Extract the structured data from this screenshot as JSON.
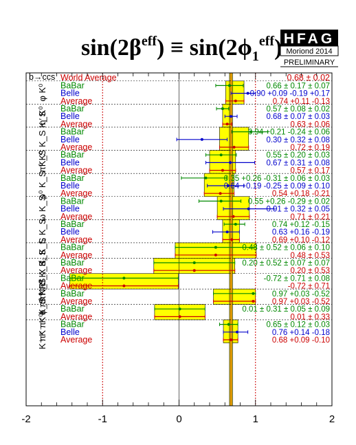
{
  "title": {
    "text": "sin(2βᵉᶠᶠ) ≡ sin(2ϕ₁ᵉᶠᶠ)",
    "part1": "sin(2β",
    "sup1": "eff",
    "part2": ") ≡ sin(2ϕ",
    "sub2": "1",
    "sup2": "eff",
    "part3": ")"
  },
  "logo": {
    "text": "HFAG",
    "subtitle": "Moriond 2014",
    "note": "PRELIMINARY"
  },
  "header_label": "b→ccs",
  "colors": {
    "babar": "#008800",
    "belle": "#0000cc",
    "average": "#cc0000",
    "band": "#ffff00",
    "world": "#cc6600"
  },
  "chart_data": {
    "type": "scatter",
    "title": "sin(2βeff) ≡ sin(2ϕ1eff)",
    "xlim": [
      -2,
      2
    ],
    "xticks": [
      "-2",
      "-1",
      "0",
      "1",
      "2"
    ],
    "reference_lines": [
      -1,
      1
    ],
    "world_average": {
      "label": "World Average",
      "value": 0.68,
      "error": 0.02,
      "text": "0.68 ± 0.02"
    },
    "modes": [
      {
        "mode": "φ K⁰",
        "rows": [
          {
            "exp": "BaBar",
            "value": 0.66,
            "elo": 0.18,
            "ehi": 0.18,
            "text": "0.66 ± 0.17 ± 0.07"
          },
          {
            "exp": "Belle",
            "value": 0.9,
            "elo": 0.22,
            "ehi": 0.1,
            "text": "0.90 +0.09 -0.19 +0.17"
          },
          {
            "exp": "Average",
            "value": 0.74,
            "elo": 0.13,
            "ehi": 0.11,
            "text": "0.74 +0.11 -0.13"
          }
        ]
      },
      {
        "mode": "η′ K⁰",
        "rows": [
          {
            "exp": "BaBar",
            "value": 0.57,
            "elo": 0.08,
            "ehi": 0.08,
            "text": "0.57 ± 0.08 ± 0.02"
          },
          {
            "exp": "Belle",
            "value": 0.68,
            "elo": 0.08,
            "ehi": 0.08,
            "text": "0.68 ± 0.07 ± 0.03"
          },
          {
            "exp": "Average",
            "value": 0.63,
            "elo": 0.06,
            "ehi": 0.06,
            "text": "0.63 ± 0.06"
          }
        ]
      },
      {
        "mode": "K_S K_S K_S",
        "rows": [
          {
            "exp": "BaBar",
            "value": 0.94,
            "elo": 0.25,
            "ehi": 0.22,
            "text": "0.94 +0.21 -0.24 ± 0.06"
          },
          {
            "exp": "Belle",
            "value": 0.3,
            "elo": 0.33,
            "ehi": 0.33,
            "text": "0.30 ± 0.32 ± 0.08"
          },
          {
            "exp": "Average",
            "value": 0.72,
            "elo": 0.19,
            "ehi": 0.19,
            "text": "0.72 ± 0.19"
          }
        ]
      },
      {
        "mode": "π⁰ K⁰",
        "rows": [
          {
            "exp": "BaBar",
            "value": 0.55,
            "elo": 0.2,
            "ehi": 0.2,
            "text": "0.55 ± 0.20 ± 0.03"
          },
          {
            "exp": "Belle",
            "value": 0.67,
            "elo": 0.32,
            "ehi": 0.32,
            "text": "0.67 ± 0.31 ± 0.08"
          },
          {
            "exp": "Average",
            "value": 0.57,
            "elo": 0.17,
            "ehi": 0.17,
            "text": "0.57 ± 0.17"
          }
        ]
      },
      {
        "mode": "ρ⁰ K_S",
        "rows": [
          {
            "exp": "BaBar",
            "value": 0.35,
            "elo": 0.32,
            "ehi": 0.27,
            "text": "0.35 +0.26 -0.31 ± 0.06 ± 0.03"
          },
          {
            "exp": "Belle",
            "value": 0.64,
            "elo": 0.27,
            "ehi": 0.21,
            "text": "0.64 +0.19 -0.25 ± 0.09 ± 0.10"
          },
          {
            "exp": "Average",
            "value": 0.54,
            "elo": 0.21,
            "ehi": 0.18,
            "text": "0.54 +0.18 -0.21"
          }
        ]
      },
      {
        "mode": "ω K_S",
        "rows": [
          {
            "exp": "BaBar",
            "value": 0.55,
            "elo": 0.29,
            "ehi": 0.26,
            "text": "0.55 +0.26 -0.29 ± 0.02"
          },
          {
            "exp": "Belle",
            "value": 0.91,
            "elo": 0.33,
            "ehi": 0.33,
            "text": "0.91 ± 0.32 ± 0.05"
          },
          {
            "exp": "Average",
            "value": 0.71,
            "elo": 0.21,
            "ehi": 0.21,
            "text": "0.71 ± 0.21"
          }
        ]
      },
      {
        "mode": "f₀ K_S",
        "rows": [
          {
            "exp": "BaBar",
            "value": 0.74,
            "elo": 0.15,
            "ehi": 0.12,
            "text": "0.74 +0.12 -0.15"
          },
          {
            "exp": "Belle",
            "value": 0.63,
            "elo": 0.19,
            "ehi": 0.16,
            "text": "0.63 +0.16 -0.19"
          },
          {
            "exp": "Average",
            "value": 0.69,
            "elo": 0.12,
            "ehi": 0.1,
            "text": "0.69 +0.10 -0.12"
          }
        ]
      },
      {
        "mode": "f₂ K_S",
        "rows": [
          {
            "exp": "BaBar",
            "value": 0.48,
            "elo": 0.53,
            "ehi": 0.53,
            "text": "0.48 ± 0.52 ± 0.06 ± 0.10"
          },
          {
            "exp": "Average",
            "value": 0.48,
            "elo": 0.53,
            "ehi": 0.53,
            "text": "0.48 ± 0.53"
          }
        ]
      },
      {
        "mode": "f_X K_S",
        "rows": [
          {
            "exp": "BaBar",
            "value": 0.2,
            "elo": 0.53,
            "ehi": 0.53,
            "text": "0.20 ± 0.52 ± 0.07 ± 0.07"
          },
          {
            "exp": "Average",
            "value": 0.2,
            "elo": 0.53,
            "ehi": 0.53,
            "text": "0.20 ± 0.53"
          }
        ]
      },
      {
        "mode": "π⁰ π⁰ K_S",
        "rows": [
          {
            "exp": "BaBar",
            "value": -0.72,
            "elo": 0.71,
            "ehi": 0.71,
            "text": "-0.72 ± 0.71 ± 0.08"
          },
          {
            "exp": "Average",
            "value": -0.72,
            "elo": 0.71,
            "ehi": 0.71,
            "text": "-0.72 ± 0.71"
          }
        ]
      },
      {
        "mode": "ϕ π⁰ K_S",
        "rows": [
          {
            "exp": "BaBar",
            "value": 0.97,
            "elo": 0.52,
            "ehi": 0.03,
            "text": "0.97 +0.03 -0.52"
          },
          {
            "exp": "Average",
            "value": 0.97,
            "elo": 0.52,
            "ehi": 0.03,
            "text": "0.97 +0.03 -0.52"
          }
        ]
      },
      {
        "mode": "π⁺ π⁻ K_S NR",
        "rows": [
          {
            "exp": "BaBar",
            "value": 0.01,
            "elo": 0.33,
            "ehi": 0.33,
            "text": "0.01 ± 0.31 ± 0.05 ± 0.09"
          },
          {
            "exp": "Average",
            "value": 0.01,
            "elo": 0.33,
            "ehi": 0.33,
            "text": "0.01 ± 0.33"
          }
        ]
      },
      {
        "mode": "K⁺ K⁻ K⁰",
        "rows": [
          {
            "exp": "BaBar",
            "value": 0.65,
            "elo": 0.12,
            "ehi": 0.12,
            "text": "0.65 ± 0.12 ± 0.03"
          },
          {
            "exp": "Belle",
            "value": 0.76,
            "elo": 0.18,
            "ehi": 0.14,
            "text": "0.76 +0.14 -0.18"
          },
          {
            "exp": "Average",
            "value": 0.68,
            "elo": 0.1,
            "ehi": 0.09,
            "text": "0.68 +0.09 -0.10"
          }
        ]
      }
    ]
  }
}
